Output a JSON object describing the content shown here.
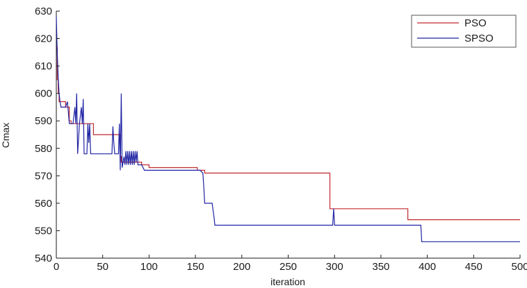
{
  "chart_data": {
    "type": "line",
    "title": "",
    "xlabel": "iteration",
    "ylabel": "Cmax",
    "xlim": [
      0,
      500
    ],
    "ylim": [
      540,
      630
    ],
    "xticks": [
      0,
      50,
      100,
      150,
      200,
      250,
      300,
      350,
      400,
      450,
      500
    ],
    "yticks": [
      540,
      550,
      560,
      570,
      580,
      590,
      600,
      610,
      620,
      630
    ],
    "grid": false,
    "legend_position": "top-right",
    "series": [
      {
        "name": "PSO",
        "color": "#c0282d",
        "step": true,
        "points": [
          [
            0,
            617
          ],
          [
            1,
            605
          ],
          [
            2,
            600
          ],
          [
            3,
            597
          ],
          [
            8,
            597
          ],
          [
            10,
            595
          ],
          [
            14,
            590
          ],
          [
            16,
            589
          ],
          [
            22,
            589
          ],
          [
            24,
            589
          ],
          [
            30,
            589
          ],
          [
            35,
            589
          ],
          [
            40,
            585
          ],
          [
            68,
            585
          ],
          [
            69,
            577
          ],
          [
            70,
            575
          ],
          [
            90,
            575
          ],
          [
            92,
            574
          ],
          [
            100,
            573
          ],
          [
            150,
            573
          ],
          [
            152,
            572
          ],
          [
            160,
            571
          ],
          [
            294,
            571
          ],
          [
            295,
            558
          ],
          [
            378,
            558
          ],
          [
            379,
            554
          ],
          [
            500,
            554
          ]
        ]
      },
      {
        "name": "SPSO",
        "color": "#1f23a3",
        "step": false,
        "points": [
          [
            0,
            628
          ],
          [
            1,
            615
          ],
          [
            2,
            606
          ],
          [
            3,
            600
          ],
          [
            4,
            597
          ],
          [
            5,
            595
          ],
          [
            10,
            595
          ],
          [
            12,
            597
          ],
          [
            14,
            589
          ],
          [
            18,
            589
          ],
          [
            20,
            595
          ],
          [
            21,
            589
          ],
          [
            22,
            600
          ],
          [
            23,
            578
          ],
          [
            25,
            589
          ],
          [
            27,
            595
          ],
          [
            28,
            589
          ],
          [
            29,
            598
          ],
          [
            30,
            578
          ],
          [
            33,
            578
          ],
          [
            34,
            589
          ],
          [
            35,
            582
          ],
          [
            36,
            589
          ],
          [
            37,
            578
          ],
          [
            60,
            578
          ],
          [
            61,
            588
          ],
          [
            62,
            582
          ],
          [
            63,
            578
          ],
          [
            67,
            578
          ],
          [
            68,
            589
          ],
          [
            69,
            572
          ],
          [
            70,
            600
          ],
          [
            71,
            573
          ],
          [
            73,
            577
          ],
          [
            74,
            574
          ],
          [
            75,
            579
          ],
          [
            76,
            574
          ],
          [
            77,
            579
          ],
          [
            78,
            574
          ],
          [
            79,
            579
          ],
          [
            80,
            574
          ],
          [
            81,
            579
          ],
          [
            82,
            574
          ],
          [
            83,
            579
          ],
          [
            84,
            574
          ],
          [
            85,
            579
          ],
          [
            86,
            575
          ],
          [
            87,
            579
          ],
          [
            88,
            574
          ],
          [
            92,
            574
          ],
          [
            95,
            572
          ],
          [
            105,
            572
          ],
          [
            110,
            572
          ],
          [
            155,
            572
          ],
          [
            158,
            571
          ],
          [
            159,
            566
          ],
          [
            160,
            560
          ],
          [
            168,
            560
          ],
          [
            170,
            555
          ],
          [
            171,
            552
          ],
          [
            298,
            552
          ],
          [
            299,
            558
          ],
          [
            300,
            552
          ],
          [
            393,
            552
          ],
          [
            394,
            546
          ],
          [
            500,
            546
          ]
        ]
      }
    ]
  }
}
